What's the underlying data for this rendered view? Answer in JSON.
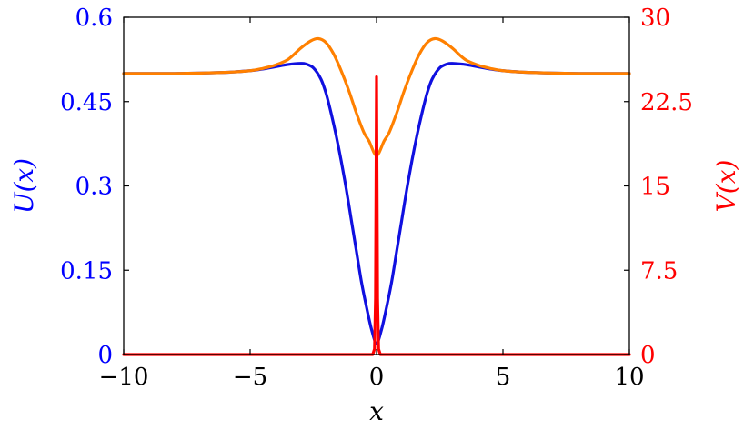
{
  "chart_data": {
    "type": "line",
    "title": "",
    "xlabel": "x",
    "ylabel_left": "U(x)",
    "ylabel_right": "V(x)",
    "xlim": [
      -10,
      10
    ],
    "ylim_left": [
      0,
      0.6
    ],
    "ylim_right": [
      0,
      30
    ],
    "x_ticks": [
      -10,
      -5,
      0,
      5,
      10
    ],
    "x_tick_labels": [
      "−10",
      "−5",
      "0",
      "5",
      "10"
    ],
    "left_ticks": [
      0,
      0.15,
      0.3,
      0.45,
      0.6
    ],
    "left_tick_labels": [
      "0",
      "0.15",
      "0.3",
      "0.45",
      "0.6"
    ],
    "right_ticks": [
      0,
      7.5,
      15,
      22.5,
      30
    ],
    "right_tick_labels": [
      "0",
      "7.5",
      "15",
      "22.5",
      "30"
    ],
    "grid": false,
    "colors": {
      "left_axis": "#0000ff",
      "right_axis": "#ff0000",
      "axis_line": "#000000"
    },
    "series": [
      {
        "axis": "left",
        "color": "#1010e0",
        "x": [
          -10,
          -8,
          -6,
          -5,
          -4.5,
          -4,
          -3.5,
          -3,
          -2.8,
          -2.5,
          -2.2,
          -2,
          -1.8,
          -1.6,
          -1.4,
          -1.2,
          -1,
          -0.8,
          -0.6,
          -0.4,
          -0.2,
          0,
          0.2,
          0.4,
          0.6,
          0.8,
          1,
          1.2,
          1.4,
          1.6,
          1.8,
          2,
          2.2,
          2.5,
          2.8,
          3,
          3.5,
          4,
          4.5,
          5,
          6,
          8,
          10
        ],
        "y": [
          0.5,
          0.5,
          0.502,
          0.505,
          0.508,
          0.512,
          0.516,
          0.518,
          0.517,
          0.51,
          0.49,
          0.465,
          0.43,
          0.39,
          0.345,
          0.295,
          0.24,
          0.185,
          0.13,
          0.085,
          0.045,
          0.02,
          0.045,
          0.085,
          0.13,
          0.185,
          0.24,
          0.295,
          0.345,
          0.39,
          0.43,
          0.465,
          0.49,
          0.51,
          0.517,
          0.518,
          0.516,
          0.512,
          0.508,
          0.505,
          0.502,
          0.5,
          0.5
        ]
      },
      {
        "axis": "left",
        "color": "#ff8000",
        "x": [
          -10,
          -8,
          -6,
          -5,
          -4.5,
          -4,
          -3.5,
          -3,
          -2.6,
          -2.3,
          -2,
          -1.7,
          -1.4,
          -1.1,
          -0.8,
          -0.5,
          -0.3,
          0,
          0.3,
          0.5,
          0.8,
          1.1,
          1.4,
          1.7,
          2,
          2.3,
          2.6,
          3,
          3.5,
          4,
          4.5,
          5,
          6,
          8,
          10
        ],
        "y": [
          0.5,
          0.5,
          0.502,
          0.505,
          0.509,
          0.515,
          0.525,
          0.545,
          0.558,
          0.562,
          0.555,
          0.535,
          0.505,
          0.47,
          0.43,
          0.395,
          0.38,
          0.354,
          0.38,
          0.395,
          0.43,
          0.47,
          0.505,
          0.535,
          0.555,
          0.562,
          0.558,
          0.545,
          0.525,
          0.515,
          0.509,
          0.505,
          0.502,
          0.5,
          0.5
        ]
      },
      {
        "axis": "right",
        "color": "#ff0000",
        "x": [
          -10,
          -0.15,
          -0.08,
          -0.04,
          -0.02,
          0,
          0.02,
          0.04,
          0.08,
          0.15,
          10
        ],
        "y": [
          0,
          0,
          0.5,
          5,
          15,
          24.7,
          15,
          5,
          0.5,
          0,
          0
        ]
      }
    ]
  }
}
